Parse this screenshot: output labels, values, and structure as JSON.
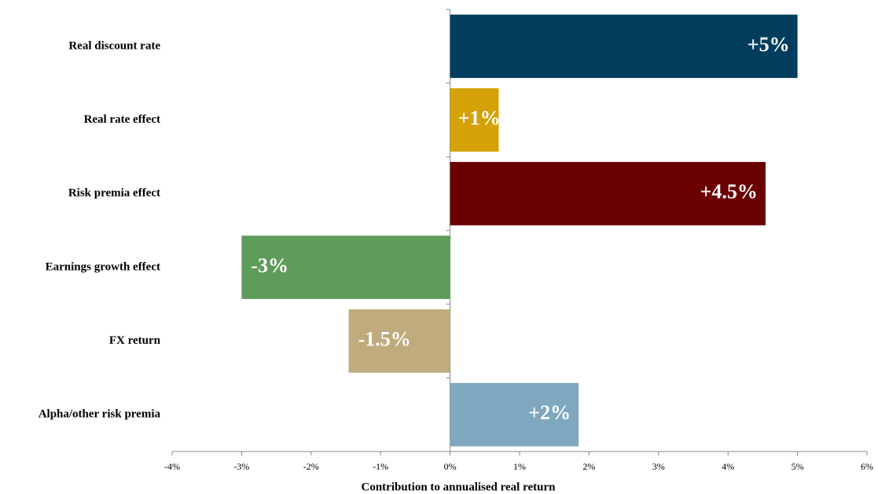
{
  "chart_data": {
    "type": "hbar",
    "categories": [
      "Real discount rate",
      "Real rate effect",
      "Risk premia effect",
      "Earnings growth effect",
      "FX return",
      "Alpha/other risk premia"
    ],
    "values": [
      5.0,
      0.7,
      4.54,
      -3.0,
      -1.46,
      1.85
    ],
    "value_labels": [
      "+5%",
      "+1%",
      "+4.5%",
      "-3%",
      "-1.5%",
      "+2%"
    ],
    "colors": [
      "#023d5e",
      "#d4a106",
      "#6b0000",
      "#5e9c5a",
      "#bfab7c",
      "#7fa7bf"
    ],
    "xlabel": "Contribution to annualised real return",
    "xlim": [
      -4,
      6
    ],
    "xticks": [
      {
        "value": -4,
        "label": "-4%"
      },
      {
        "value": -3,
        "label": "-3%"
      },
      {
        "value": -2,
        "label": "-2%"
      },
      {
        "value": -1,
        "label": "-1%"
      },
      {
        "value": 0,
        "label": "0%"
      },
      {
        "value": 1,
        "label": "1%"
      },
      {
        "value": 2,
        "label": "2%"
      },
      {
        "value": 3,
        "label": "3%"
      },
      {
        "value": 4,
        "label": "4%"
      },
      {
        "value": 5,
        "label": "5%"
      },
      {
        "value": 6,
        "label": "6%"
      }
    ]
  }
}
